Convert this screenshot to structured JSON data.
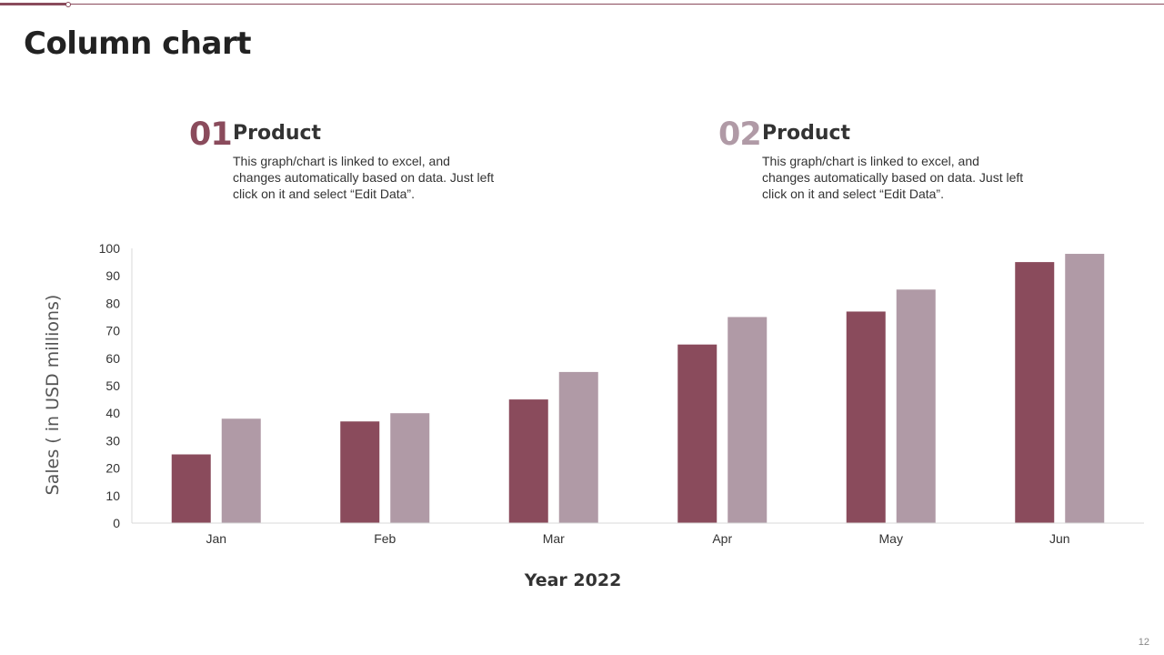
{
  "page": {
    "title": "Column chart",
    "page_number": "12"
  },
  "products": [
    {
      "number": "01",
      "title": "Product",
      "description": "This graph/chart is linked to excel, and changes automatically based on data. Just left click on it and select “Edit Data”."
    },
    {
      "number": "02",
      "title": "Product",
      "description": "This graph/chart is linked to excel, and changes automatically based on data. Just left click on it and select “Edit Data”."
    }
  ],
  "colors": {
    "series1": "#8a4b5c",
    "series2": "#b09aa6",
    "accent": "#8a4b5c"
  },
  "chart_data": {
    "type": "bar",
    "title": "",
    "xlabel": "Year 2022",
    "ylabel": "Sales  ( in USD millions)",
    "categories": [
      "Jan",
      "Feb",
      "Mar",
      "Apr",
      "May",
      "Jun"
    ],
    "series": [
      {
        "name": "Product 01",
        "values": [
          25,
          37,
          45,
          65,
          77,
          95
        ]
      },
      {
        "name": "Product 02",
        "values": [
          38,
          40,
          55,
          75,
          85,
          98
        ]
      }
    ],
    "ylim": [
      0,
      100
    ],
    "yticks": [
      0,
      10,
      20,
      30,
      40,
      50,
      60,
      70,
      80,
      90,
      100
    ],
    "grid": false,
    "legend": "none"
  }
}
